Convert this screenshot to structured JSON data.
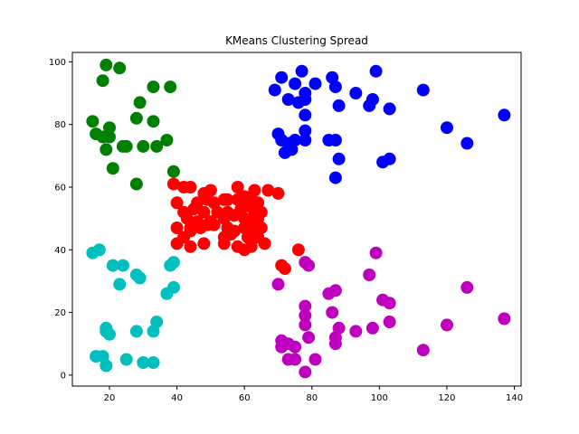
{
  "chart_data": {
    "type": "scatter",
    "title": "KMeans Clustering Spread",
    "xlabel": "",
    "ylabel": "",
    "xlim": [
      9,
      142
    ],
    "ylim": [
      -3.5,
      103
    ],
    "xticks": [
      20,
      40,
      60,
      80,
      100,
      120,
      140
    ],
    "yticks": [
      0,
      20,
      40,
      60,
      80,
      100
    ],
    "grid": false,
    "series": [
      {
        "color": "#008000",
        "points": [
          [
            19,
            99
          ],
          [
            23,
            98
          ],
          [
            18,
            94
          ],
          [
            33,
            92
          ],
          [
            38,
            92
          ],
          [
            29,
            87
          ],
          [
            15,
            81
          ],
          [
            20,
            79
          ],
          [
            28,
            82
          ],
          [
            33,
            81
          ],
          [
            16,
            77
          ],
          [
            18,
            76
          ],
          [
            20,
            76
          ],
          [
            24,
            73
          ],
          [
            25,
            73
          ],
          [
            30,
            73
          ],
          [
            34,
            73
          ],
          [
            37,
            75
          ],
          [
            19,
            72
          ],
          [
            21,
            66
          ],
          [
            39,
            65
          ],
          [
            28,
            61
          ]
        ]
      },
      {
        "color": "#0000ff",
        "points": [
          [
            77,
            97
          ],
          [
            99,
            97
          ],
          [
            71,
            95
          ],
          [
            86,
            95
          ],
          [
            75,
            93
          ],
          [
            81,
            93
          ],
          [
            69,
            91
          ],
          [
            87,
            92
          ],
          [
            113,
            91
          ],
          [
            78,
            90
          ],
          [
            93,
            90
          ],
          [
            73,
            88
          ],
          [
            76,
            87
          ],
          [
            78,
            88
          ],
          [
            98,
            88
          ],
          [
            88,
            86
          ],
          [
            97,
            86
          ],
          [
            103,
            85
          ],
          [
            78,
            83
          ],
          [
            137,
            83
          ],
          [
            120,
            79
          ],
          [
            70,
            77
          ],
          [
            78,
            78
          ],
          [
            71,
            75
          ],
          [
            73,
            74
          ],
          [
            75,
            75
          ],
          [
            78,
            75
          ],
          [
            85,
            75
          ],
          [
            87,
            75
          ],
          [
            126,
            74
          ],
          [
            72,
            71
          ],
          [
            74,
            72
          ],
          [
            88,
            69
          ],
          [
            103,
            69
          ],
          [
            101,
            68
          ],
          [
            87,
            63
          ]
        ]
      },
      {
        "color": "#ff0000",
        "points": [
          [
            39,
            61
          ],
          [
            42,
            60
          ],
          [
            44,
            60
          ],
          [
            50,
            59
          ],
          [
            58,
            60
          ],
          [
            63,
            59
          ],
          [
            67,
            59
          ],
          [
            70,
            58
          ],
          [
            48,
            58
          ],
          [
            54,
            56
          ],
          [
            40,
            55
          ],
          [
            46,
            55
          ],
          [
            49,
            56
          ],
          [
            51,
            55
          ],
          [
            55,
            56
          ],
          [
            58,
            56
          ],
          [
            60,
            57
          ],
          [
            62,
            56
          ],
          [
            64,
            55
          ],
          [
            42,
            52
          ],
          [
            45,
            53
          ],
          [
            48,
            52
          ],
          [
            52,
            52
          ],
          [
            55,
            52
          ],
          [
            59,
            53
          ],
          [
            61,
            54
          ],
          [
            63,
            52
          ],
          [
            65,
            52
          ],
          [
            43,
            50
          ],
          [
            46,
            49
          ],
          [
            50,
            49
          ],
          [
            54,
            50
          ],
          [
            57,
            51
          ],
          [
            60,
            50
          ],
          [
            62,
            49
          ],
          [
            64,
            50
          ],
          [
            40,
            47
          ],
          [
            44,
            47
          ],
          [
            47,
            47
          ],
          [
            49,
            48
          ],
          [
            51,
            48
          ],
          [
            55,
            47
          ],
          [
            57,
            46
          ],
          [
            60,
            47
          ],
          [
            63,
            46
          ],
          [
            65,
            47
          ],
          [
            42,
            44
          ],
          [
            44,
            46
          ],
          [
            54,
            44
          ],
          [
            56,
            45
          ],
          [
            61,
            44
          ],
          [
            64,
            44
          ],
          [
            40,
            42
          ],
          [
            44,
            41
          ],
          [
            48,
            42
          ],
          [
            54,
            42
          ],
          [
            58,
            41
          ],
          [
            60,
            40
          ],
          [
            62,
            41
          ],
          [
            66,
            42
          ],
          [
            76,
            40
          ],
          [
            71,
            35
          ],
          [
            72,
            34
          ]
        ]
      },
      {
        "color": "#00bfbf",
        "points": [
          [
            17,
            40
          ],
          [
            15,
            39
          ],
          [
            21,
            35
          ],
          [
            24,
            35
          ],
          [
            28,
            32
          ],
          [
            29,
            31
          ],
          [
            39,
            36
          ],
          [
            38,
            35
          ],
          [
            23,
            29
          ],
          [
            39,
            28
          ],
          [
            37,
            26
          ],
          [
            34,
            17
          ],
          [
            19,
            15
          ],
          [
            20,
            13
          ],
          [
            19,
            14
          ],
          [
            28,
            14
          ],
          [
            33,
            14
          ],
          [
            16,
            6
          ],
          [
            18,
            6
          ],
          [
            25,
            5
          ],
          [
            30,
            4
          ],
          [
            33,
            4
          ],
          [
            19,
            3
          ]
        ]
      },
      {
        "color": "#bf00bf",
        "points": [
          [
            99,
            39
          ],
          [
            78,
            36
          ],
          [
            79,
            35
          ],
          [
            97,
            32
          ],
          [
            70,
            29
          ],
          [
            126,
            28
          ],
          [
            87,
            27
          ],
          [
            85,
            26
          ],
          [
            101,
            24
          ],
          [
            103,
            23
          ],
          [
            78,
            22
          ],
          [
            78,
            19
          ],
          [
            86,
            20
          ],
          [
            137,
            18
          ],
          [
            103,
            17
          ],
          [
            78,
            16
          ],
          [
            120,
            16
          ],
          [
            88,
            15
          ],
          [
            98,
            15
          ],
          [
            93,
            14
          ],
          [
            79,
            12
          ],
          [
            87,
            12
          ],
          [
            71,
            11
          ],
          [
            73,
            10
          ],
          [
            87,
            10
          ],
          [
            71,
            9
          ],
          [
            75,
            9
          ],
          [
            113,
            8
          ],
          [
            73,
            5
          ],
          [
            75,
            5
          ],
          [
            81,
            5
          ],
          [
            78,
            1
          ]
        ]
      }
    ]
  }
}
